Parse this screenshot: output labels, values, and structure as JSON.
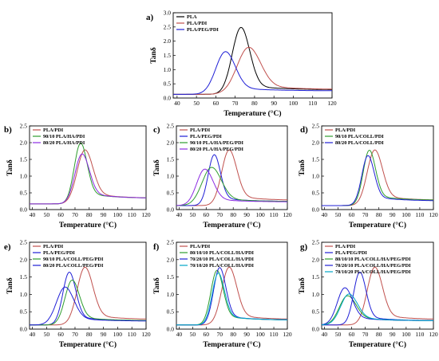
{
  "colors": {
    "PLA": "#000000",
    "PLA/PDI": "#c0504d",
    "PLA/PEG/PDI": "#1f1fd6",
    "90/10 PLA/HA/PDI": "#2e9d2e",
    "80/20 PLA/HA/PDI": "#8b2be2",
    "90/10 PLA/HA/PEG/PDI": "#2e9d2e",
    "80/20 PLA/HA/PEG/PDI": "#8b2be2",
    "90/10 PLA/COLL/PDI": "#2e9d2e",
    "80/20 PLA/COLL/PDI": "#1f1fd6",
    "90/10 PLA/COLL/PEG/PDI": "#2e9d2e",
    "80/20 PLA/COLL/PEG/PDI": "#1f1fd6",
    "80/10/10 PLA/COLL/HA/PDI": "#2e9d2e",
    "70/20/10 PLA/COLL/HA/PDI": "#1f1fd6",
    "70/10/20 PLA/COLL/HA/PDI": "#00a6c9",
    "80/10/10 PLA/COLL/HA/PEG/PDI": "#2e9d2e",
    "70/20/10 PLA/COLL/HA/PEG/PDI": "#1f1fd6",
    "70/10/20 PLA/COLL/HA/PEG/PDI": "#00a6c9"
  },
  "chart_data": [
    {
      "panel": "a)",
      "type": "line",
      "xlabel": "Temperature (°C)",
      "ylabel": "Tanδ",
      "xlim": [
        38,
        120
      ],
      "ylim": [
        0,
        3.0
      ],
      "xticks": [
        40,
        50,
        60,
        70,
        80,
        90,
        100,
        110,
        120
      ],
      "yticks": [
        0,
        0.5,
        1.0,
        1.5,
        2.0,
        2.5,
        3.0
      ],
      "legend": "top-left",
      "series": [
        {
          "name": "PLA",
          "peak": 73,
          "height": 2.47,
          "base": 0.13,
          "w": 4.5,
          "tail": 0.28
        },
        {
          "name": "PLA/PDI",
          "peak": 77,
          "height": 1.77,
          "base": 0.13,
          "w": 6,
          "tail": 0.3
        },
        {
          "name": "PLA/PEG/PDI",
          "peak": 65,
          "height": 1.62,
          "base": 0.13,
          "w": 5,
          "tail": 0.22
        }
      ]
    },
    {
      "panel": "b)",
      "type": "line",
      "xlabel": "Temperature (°C)",
      "ylabel": "Tanδ",
      "xlim": [
        38,
        120
      ],
      "ylim": [
        0,
        2.5
      ],
      "xticks": [
        40,
        50,
        60,
        70,
        80,
        90,
        100,
        110,
        120
      ],
      "yticks": [
        0,
        0.5,
        1.0,
        1.5,
        2.0,
        2.5
      ],
      "legend": "top-left",
      "series": [
        {
          "name": "PLA/PDI",
          "peak": 77,
          "height": 1.77,
          "base": 0.17,
          "w": 5.5,
          "tail": 0.3
        },
        {
          "name": "90/10 PLA/HA/PDI",
          "peak": 74,
          "height": 1.97,
          "base": 0.17,
          "w": 4.5,
          "tail": 0.3
        },
        {
          "name": "80/20 PLA/HA/PDI",
          "peak": 75,
          "height": 1.65,
          "base": 0.17,
          "w": 5,
          "tail": 0.3
        }
      ]
    },
    {
      "panel": "c)",
      "type": "line",
      "xlabel": "Temperature (°C)",
      "ylabel": "Tanδ",
      "xlim": [
        38,
        120
      ],
      "ylim": [
        0,
        2.5
      ],
      "xticks": [
        40,
        50,
        60,
        70,
        80,
        90,
        100,
        110,
        120
      ],
      "yticks": [
        0,
        0.5,
        1.0,
        1.5,
        2.0,
        2.5
      ],
      "legend": "top-left",
      "series": [
        {
          "name": "PLA/PDI",
          "peak": 77,
          "height": 1.77,
          "base": 0.12,
          "w": 5.5,
          "tail": 0.28
        },
        {
          "name": "PLA/PEG/PDI",
          "peak": 66,
          "height": 1.63,
          "base": 0.12,
          "w": 4.5,
          "tail": 0.22
        },
        {
          "name": "90/10 PLA/HA/PEG/PDI",
          "peak": 64,
          "height": 1.25,
          "base": 0.12,
          "w": 7,
          "tail": 0.22
        },
        {
          "name": "80/20 PLA/HA/PEG/PDI",
          "peak": 59,
          "height": 1.2,
          "base": 0.12,
          "w": 6,
          "tail": 0.2
        }
      ]
    },
    {
      "panel": "d)",
      "type": "line",
      "xlabel": "Temperature (°C)",
      "ylabel": "Tanδ",
      "xlim": [
        38,
        120
      ],
      "ylim": [
        0,
        2.5
      ],
      "xticks": [
        40,
        50,
        60,
        70,
        80,
        90,
        100,
        110,
        120
      ],
      "yticks": [
        0,
        0.5,
        1.0,
        1.5,
        2.0,
        2.5
      ],
      "legend": "top-left",
      "series": [
        {
          "name": "PLA/PDI",
          "peak": 77,
          "height": 1.77,
          "base": 0.12,
          "w": 5.5,
          "tail": 0.28
        },
        {
          "name": "90/10 PLA/COLL/PDI",
          "peak": 73,
          "height": 1.76,
          "base": 0.12,
          "w": 4.5,
          "tail": 0.28
        },
        {
          "name": "80/20 PLA/COLL/PDI",
          "peak": 72,
          "height": 1.6,
          "base": 0.12,
          "w": 4.5,
          "tail": 0.25
        }
      ]
    },
    {
      "panel": "e)",
      "type": "line",
      "xlabel": "Temperature (°C)",
      "ylabel": "Tanδ",
      "xlim": [
        38,
        120
      ],
      "ylim": [
        0,
        2.5
      ],
      "xticks": [
        40,
        50,
        60,
        70,
        80,
        90,
        100,
        110,
        120
      ],
      "yticks": [
        0,
        0.5,
        1.0,
        1.5,
        2.0,
        2.5
      ],
      "legend": "top-left",
      "series": [
        {
          "name": "PLA/PDI",
          "peak": 77,
          "height": 1.77,
          "base": 0.12,
          "w": 5.5,
          "tail": 0.28
        },
        {
          "name": "PLA/PEG/PDI",
          "peak": 66,
          "height": 1.63,
          "base": 0.12,
          "w": 4.5,
          "tail": 0.22
        },
        {
          "name": "90/10 PLA/COLL/PEG/PDI",
          "peak": 68,
          "height": 1.4,
          "base": 0.12,
          "w": 5,
          "tail": 0.22
        },
        {
          "name": "80/20 PLA/COLL/PEG/PDI",
          "peak": 63,
          "height": 1.2,
          "base": 0.12,
          "w": 6,
          "tail": 0.2
        }
      ]
    },
    {
      "panel": "f)",
      "type": "line",
      "xlabel": "Temperature (°C)",
      "ylabel": "Tanδ",
      "xlim": [
        38,
        120
      ],
      "ylim": [
        0,
        2.5
      ],
      "xticks": [
        40,
        50,
        60,
        70,
        80,
        90,
        100,
        110,
        120
      ],
      "yticks": [
        0,
        0.5,
        1.0,
        1.5,
        2.0,
        2.5
      ],
      "legend": "top-left",
      "series": [
        {
          "name": "PLA/PDI",
          "peak": 77,
          "height": 1.77,
          "base": 0.12,
          "w": 5.5,
          "tail": 0.28
        },
        {
          "name": "80/10/10 PLA/COLL/HA/PDI",
          "peak": 68,
          "height": 1.68,
          "base": 0.12,
          "w": 4.5,
          "tail": 0.25
        },
        {
          "name": "70/20/10 PLA/COLL/HA/PDI",
          "peak": 70,
          "height": 1.76,
          "base": 0.12,
          "w": 4.5,
          "tail": 0.25
        },
        {
          "name": "70/10/20 PLA/COLL/HA/PDI",
          "peak": 69,
          "height": 1.6,
          "base": 0.12,
          "w": 4.5,
          "tail": 0.25
        }
      ]
    },
    {
      "panel": "g)",
      "type": "line",
      "xlabel": "Temperature (°C)",
      "ylabel": "Tanδ",
      "xlim": [
        38,
        120
      ],
      "ylim": [
        0,
        2.5
      ],
      "xticks": [
        40,
        50,
        60,
        70,
        80,
        90,
        100,
        110,
        120
      ],
      "yticks": [
        0,
        0.5,
        1.0,
        1.5,
        2.0,
        2.5
      ],
      "legend": "top-left",
      "series": [
        {
          "name": "PLA/PDI",
          "peak": 77,
          "height": 1.77,
          "base": 0.12,
          "w": 5.5,
          "tail": 0.28
        },
        {
          "name": "PLA/PEG/PDI",
          "peak": 66,
          "height": 1.63,
          "base": 0.12,
          "w": 4.5,
          "tail": 0.22
        },
        {
          "name": "80/10/10 PLA/COLL/HA/PEG/PDI",
          "peak": 57,
          "height": 0.95,
          "base": 0.12,
          "w": 6,
          "tail": 0.22
        },
        {
          "name": "70/20/10 PLA/COLL/HA/PEG/PDI",
          "peak": 55,
          "height": 1.18,
          "base": 0.12,
          "w": 5.5,
          "tail": 0.22
        },
        {
          "name": "70/10/20 PLA/COLL/HA/PEG/PDI",
          "peak": 58,
          "height": 1.0,
          "base": 0.12,
          "w": 6,
          "tail": 0.22
        }
      ]
    }
  ]
}
